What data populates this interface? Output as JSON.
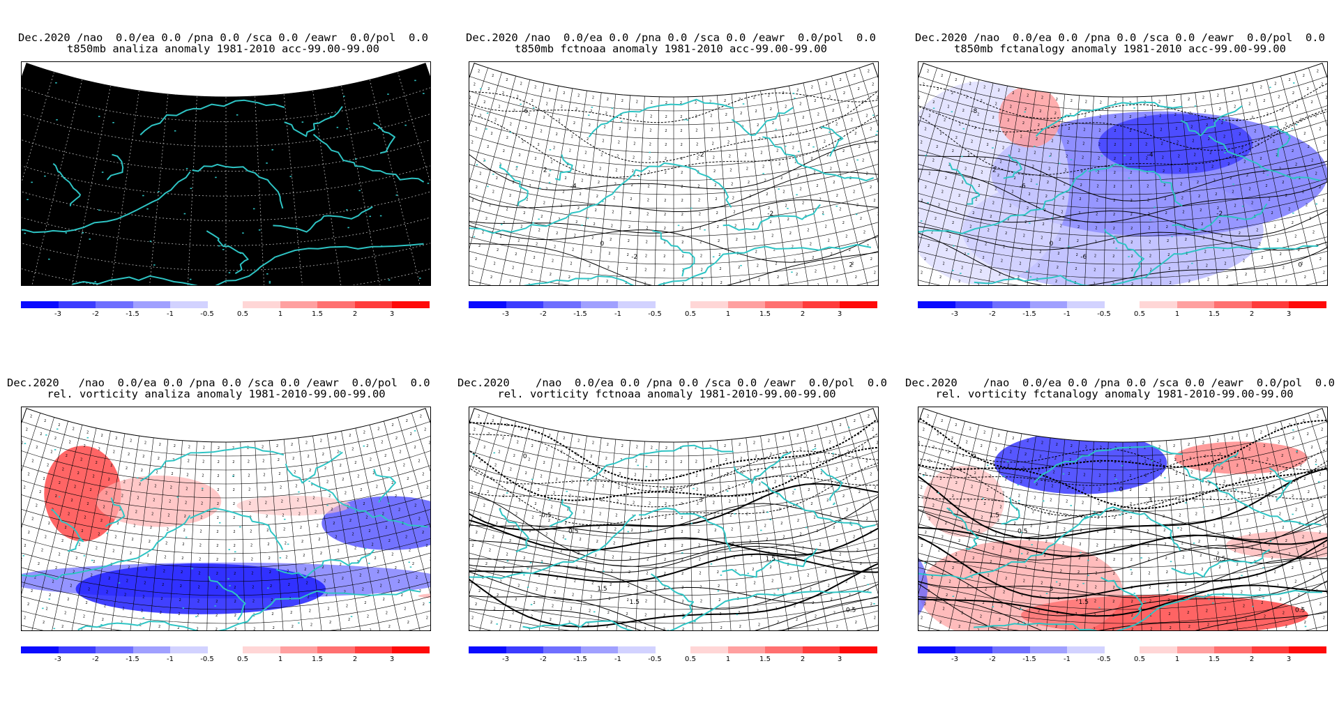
{
  "colorbar": {
    "swatches": [
      "#0a0aff",
      "#3c3cff",
      "#6f6fff",
      "#a0a0ff",
      "#d2d2ff",
      "#ffd6d6",
      "#ffa0a0",
      "#ff7070",
      "#ff3c3c",
      "#ff0a0a"
    ],
    "ticks": [
      "-3",
      "-2",
      "-1.5",
      "-1",
      "-0.5",
      "0.5",
      "1",
      "1.5",
      "2",
      "3"
    ]
  },
  "panels": [
    {
      "id": "t850-analiza",
      "title_line1": "Dec.2020 /nao  0.0/ea 0.0 /pna 0.0 /sca 0.0 /eawr  0.0/pol  0.0",
      "title_line2": "t850mb analiza anomaly 1981-2010 acc-99.00-99.00",
      "map_style": "black",
      "contour_labels": []
    },
    {
      "id": "t850-fctnoaa",
      "title_line1": "Dec.2020 /nao  0.0/ea 0.0 /pna 0.0 /sca 0.0 /eawr  0.0/pol  0.0",
      "title_line2": "t850mb fctnoaa anomaly 1981-2010 acc-99.00-99.00",
      "map_style": "plain",
      "contour_labels": [
        "-6",
        "-4",
        "-2",
        "-2",
        "-2",
        "2",
        "2",
        "0"
      ]
    },
    {
      "id": "t850-fctanalogy",
      "title_line1": "Dec.2020 /nao  0.0/ea 0.0 /pna 0.0 /sca 0.0 /eawr  0.0/pol  0.0",
      "title_line2": "t850mb fctanalogy anomaly 1981-2010 acc-99.00-99.00",
      "map_style": "t850-analog",
      "contour_labels": [
        "-8",
        "-6",
        "-6",
        "-4",
        "-2",
        "0",
        "2",
        "0"
      ]
    },
    {
      "id": "vort-analiza",
      "title_line1": "Dec.2020   /nao  0.0/ea 0.0 /pna 0.0 /sca 0.0 /eawr  0.0/pol  0.0",
      "title_line2": "rel. vorticity analiza anomaly 1981-2010-99.00-99.00",
      "map_style": "vort-analiza",
      "contour_labels": []
    },
    {
      "id": "vort-fctnoaa",
      "title_line1": "Dec.2020    /nao  0.0/ea 0.0 /pna 0.0 /sca 0.0 /eawr  0.0/pol  0.0",
      "title_line2": "rel. vorticity fctnoaa anomaly 1981-2010-99.00-99.00",
      "map_style": "vort-noaa",
      "contour_labels": [
        "0",
        "0.5",
        "1.5",
        "3",
        "1.5",
        "0.5",
        "-0.5",
        "1.5",
        "0"
      ]
    },
    {
      "id": "vort-fctanalogy",
      "title_line1": "Dec.2020    /nao  0.0/ea 0.0 /pna 0.0 /sca 0.0 /eawr  0.0/pol  0.0",
      "title_line2": "rel. vorticity fctanalogy anomaly 1981-2010-99.00-99.00",
      "map_style": "vort-analog",
      "contour_labels": [
        "0",
        "0.5",
        "1.5",
        "3",
        "-0.5",
        "0.5",
        "1.5",
        "3",
        "0"
      ]
    }
  ]
}
